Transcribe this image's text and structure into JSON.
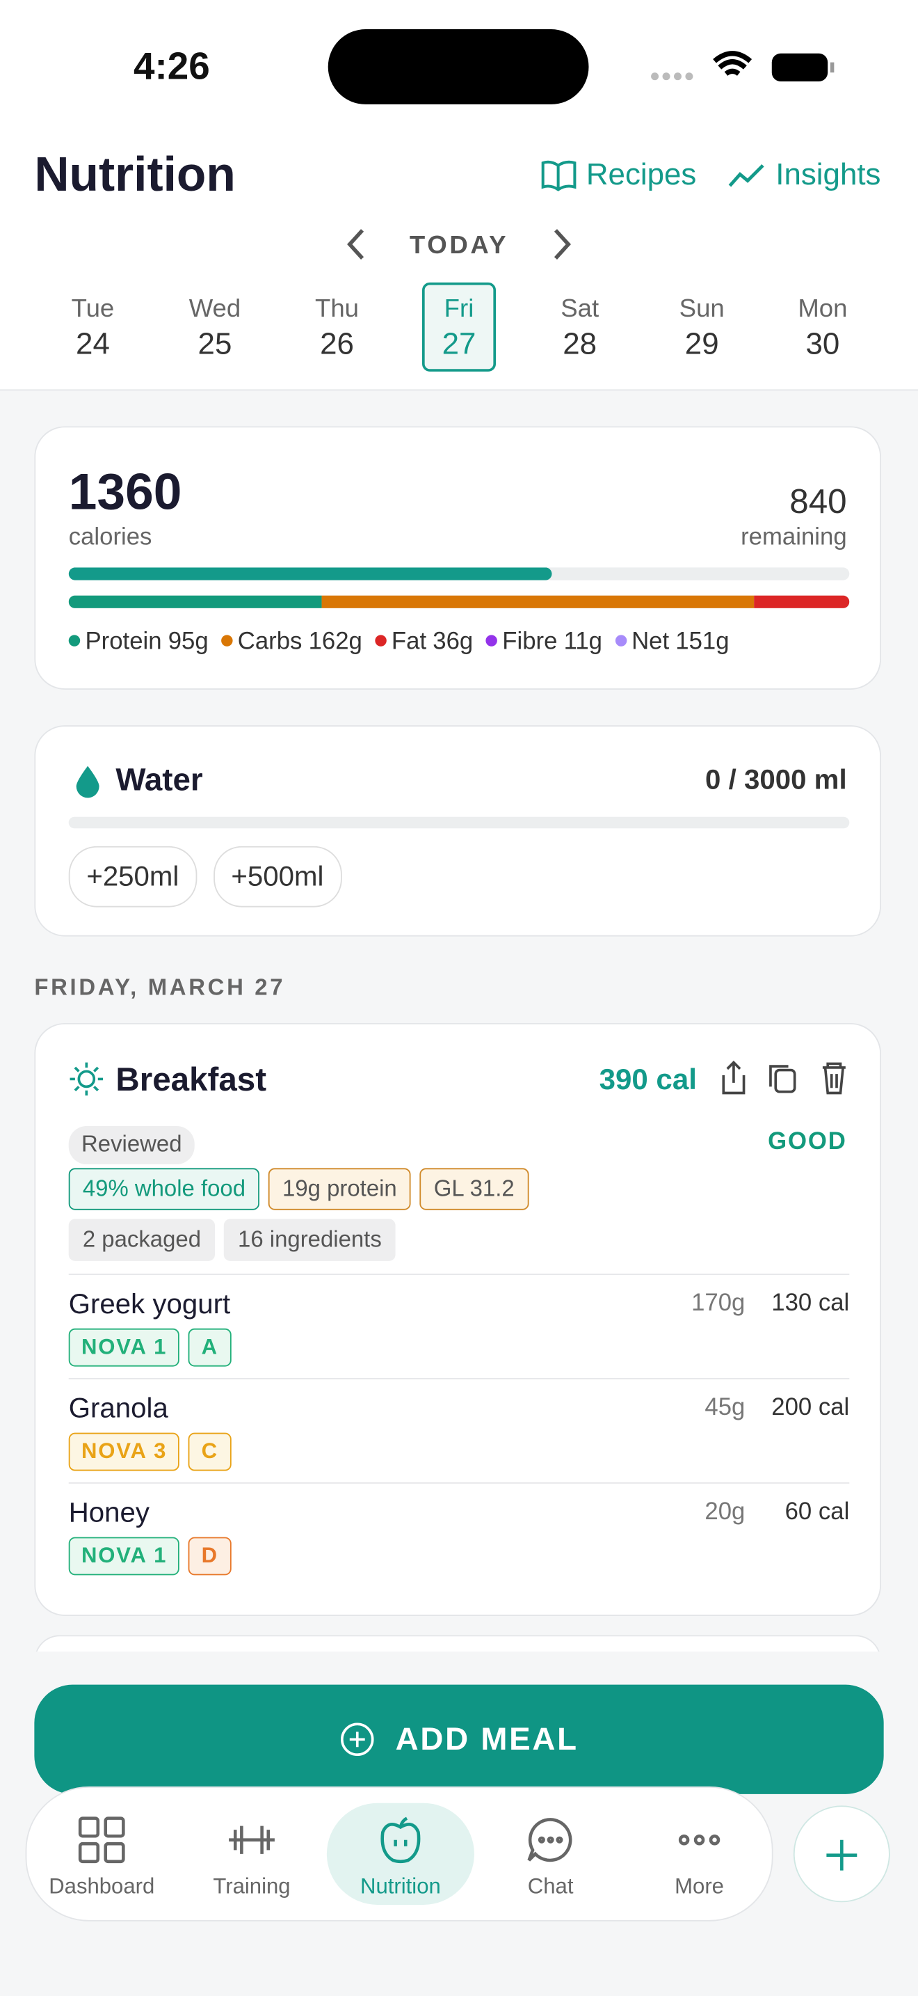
{
  "status_bar": {
    "time": "4:26"
  },
  "header": {
    "title": "Nutrition",
    "links": [
      "Recipes",
      "Insights"
    ]
  },
  "date_nav": {
    "label": "TODAY",
    "days": [
      {
        "day": "Tue",
        "date": "24"
      },
      {
        "day": "Wed",
        "date": "25"
      },
      {
        "day": "Thu",
        "date": "26"
      },
      {
        "day": "Fri",
        "date": "27",
        "selected": true
      },
      {
        "day": "Sat",
        "date": "28"
      },
      {
        "day": "Sun",
        "date": "29"
      },
      {
        "day": "Mon",
        "date": "30"
      }
    ]
  },
  "summary": {
    "calories": 1360,
    "calories_label": "calories",
    "remaining": 840,
    "remaining_label": "remaining",
    "macros": [
      {
        "name": "Protein",
        "value": 95,
        "unit": "g",
        "color": "#139a7c",
        "in_bar": true
      },
      {
        "name": "Carbs",
        "value": 162,
        "unit": "g",
        "color": "#d97706",
        "in_bar": true
      },
      {
        "name": "Fat",
        "value": 36,
        "unit": "g",
        "color": "#dc2626",
        "in_bar": true
      },
      {
        "name": "Fibre",
        "value": 11,
        "unit": "g",
        "color": "#9333ea",
        "in_bar": false
      },
      {
        "name": "Net",
        "value": 151,
        "unit": "g",
        "color": "#a78bfa",
        "in_bar": false
      }
    ]
  },
  "water": {
    "title": "Water",
    "value": 0,
    "goal": 3000,
    "separator": "/",
    "unit": "ml",
    "buttons": [
      "+250ml",
      "+500ml"
    ]
  },
  "day_heading": "FRIDAY, MARCH 27",
  "meal": {
    "title": "Breakfast",
    "calories": "390 cal",
    "status": "Reviewed",
    "rating": "GOOD",
    "tags": [
      [
        "49% whole food",
        "19g protein",
        "GL 31.2"
      ],
      [
        "2 packaged",
        "16 ingredients"
      ]
    ],
    "items": [
      {
        "name": "Greek yogurt",
        "weight": "170g",
        "calories": "130 cal",
        "tags": [
          "NOVA 1",
          "A"
        ]
      },
      {
        "name": "Granola",
        "weight": "45g",
        "calories": "200 cal",
        "tags": [
          "NOVA 3",
          "C"
        ]
      },
      {
        "name": "Honey",
        "weight": "20g",
        "calories": "60 cal",
        "tags": [
          "NOVA 1",
          "D"
        ]
      }
    ]
  },
  "add_button": "ADD MEAL",
  "tab_bar": {
    "tabs": [
      "Dashboard",
      "Training",
      "Nutrition",
      "Chat",
      "More"
    ],
    "active": 2
  }
}
